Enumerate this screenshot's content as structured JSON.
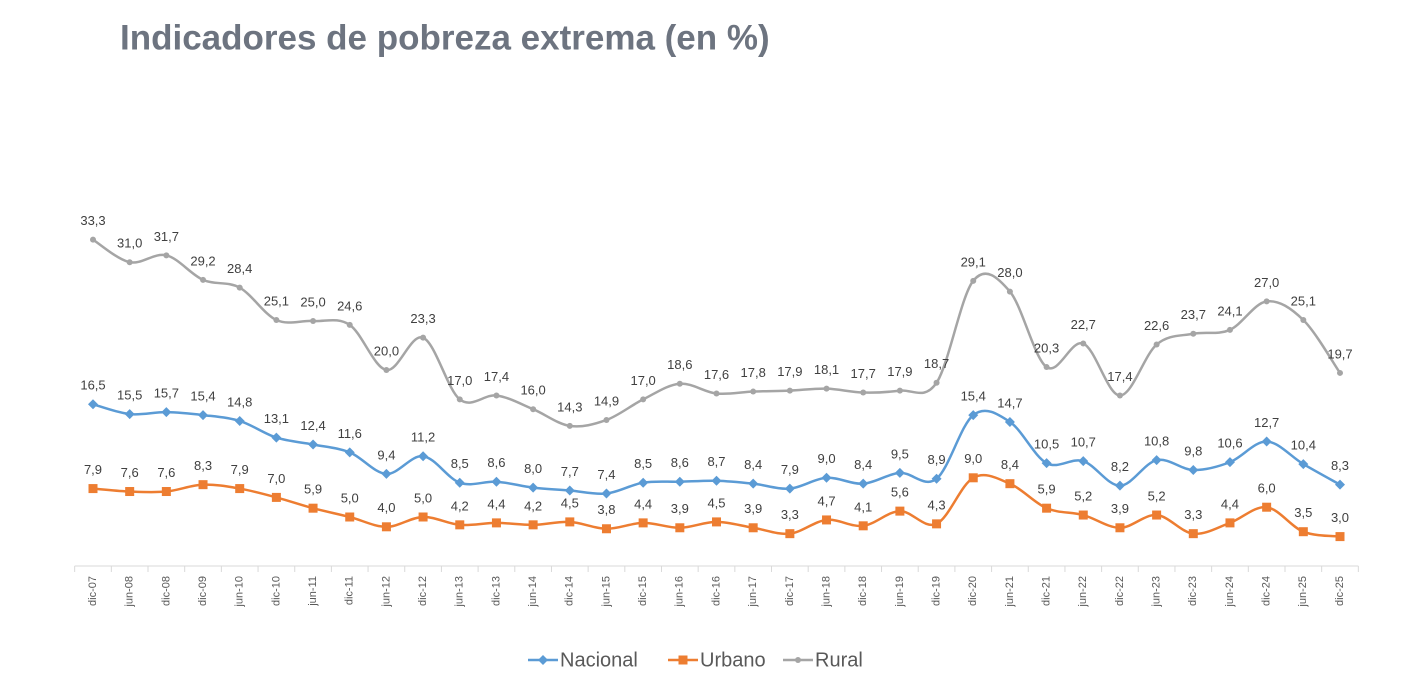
{
  "chart_data": {
    "type": "line",
    "title": "Indicadores de pobreza extrema (en %)",
    "categories": [
      "dic-07",
      "jun-08",
      "dic-08",
      "dic-09",
      "jun-10",
      "dic-10",
      "jun-11",
      "dic-11",
      "jun-12",
      "dic-12",
      "jun-13",
      "dic-13",
      "jun-14",
      "dic-14",
      "jun-15",
      "dic-15",
      "jun-16",
      "dic-16",
      "jun-17",
      "dic-17",
      "jun-18",
      "dic-18",
      "jun-19",
      "dic-19",
      "dic-20",
      "jun-21",
      "dic-21",
      "jun-22",
      "dic-22",
      "jun-23",
      "dic-23",
      "jun-24",
      "dic-24",
      "jun-25",
      "dic-25"
    ],
    "series": [
      {
        "name": "Nacional",
        "color": "#5b9bd5",
        "marker": "diamond",
        "values": [
          16.5,
          15.5,
          15.7,
          15.4,
          14.8,
          13.1,
          12.4,
          11.6,
          9.4,
          11.2,
          8.5,
          8.6,
          8.0,
          7.7,
          7.4,
          8.5,
          8.6,
          8.7,
          8.4,
          7.9,
          9.0,
          8.4,
          9.5,
          8.9,
          15.4,
          14.7,
          10.5,
          10.7,
          8.2,
          10.8,
          9.8,
          10.6,
          12.7,
          10.4,
          8.3
        ],
        "value_labels": [
          "16,5",
          "15,5",
          "15,7",
          "15,4",
          "14,8",
          "13,1",
          "12,4",
          "11,6",
          "9,4",
          "11,2",
          "8,5",
          "8,6",
          "8,0",
          "7,7",
          "7,4",
          "8,5",
          "8,6",
          "8,7",
          "8,4",
          "7,9",
          "9,0",
          "8,4",
          "9,5",
          "8,9",
          "15,4",
          "14,7",
          "10,5",
          "10,7",
          "8,2",
          "10,8",
          "9,8",
          "10,6",
          "12,7",
          "10,4",
          "8,3"
        ]
      },
      {
        "name": "Urbano",
        "color": "#ed7d31",
        "marker": "square",
        "values": [
          7.9,
          7.6,
          7.6,
          8.3,
          7.9,
          7.0,
          5.9,
          5.0,
          4.0,
          5.0,
          4.2,
          4.4,
          4.2,
          4.5,
          3.8,
          4.4,
          3.9,
          4.5,
          3.9,
          3.3,
          4.7,
          4.1,
          5.6,
          4.3,
          9.0,
          8.4,
          5.9,
          5.2,
          3.9,
          5.2,
          3.3,
          4.4,
          6.0,
          3.5,
          3.0
        ],
        "value_labels": [
          "7,9",
          "7,6",
          "7,6",
          "8,3",
          "7,9",
          "7,0",
          "5,9",
          "5,0",
          "4,0",
          "5,0",
          "4,2",
          "4,4",
          "4,2",
          "4,5",
          "3,8",
          "4,4",
          "3,9",
          "4,5",
          "3,9",
          "3,3",
          "4,7",
          "4,1",
          "5,6",
          "4,3",
          "9,0",
          "8,4",
          "5,9",
          "5,2",
          "3,9",
          "5,2",
          "3,3",
          "4,4",
          "6,0",
          "3,5",
          "3,0"
        ]
      },
      {
        "name": "Rural",
        "color": "#a5a5a5",
        "marker": "circle",
        "values": [
          33.3,
          31.0,
          31.7,
          29.2,
          28.4,
          25.1,
          25.0,
          24.6,
          20.0,
          23.3,
          17.0,
          17.4,
          16.0,
          14.3,
          14.9,
          17.0,
          18.6,
          17.6,
          17.8,
          17.9,
          18.1,
          17.7,
          17.9,
          18.7,
          29.1,
          28.0,
          20.3,
          22.7,
          17.4,
          22.6,
          23.7,
          24.1,
          27.0,
          25.1,
          19.7
        ],
        "value_labels": [
          "33,3",
          "31,0",
          "31,7",
          "29,2",
          "28,4",
          "25,1",
          "25,0",
          "24,6",
          "20,0",
          "23,3",
          "17,0",
          "17,4",
          "16,0",
          "14,3",
          "14,9",
          "17,0",
          "18,6",
          "17,6",
          "17,8",
          "17,9",
          "18,1",
          "17,7",
          "17,9",
          "18,7",
          "29,1",
          "28,0",
          "20,3",
          "22,7",
          "17,4",
          "22,6",
          "23,7",
          "24,1",
          "27,0",
          "25,1",
          "19,7"
        ]
      }
    ],
    "legend": "bottom"
  }
}
